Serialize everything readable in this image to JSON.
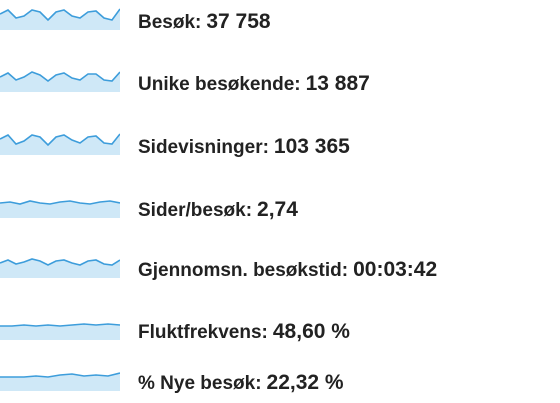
{
  "metrics": [
    {
      "label": "Besøk:",
      "value": "37 758"
    },
    {
      "label": "Unike besøkende:",
      "value": "13 887"
    },
    {
      "label": "Sidevisninger:",
      "value": "103 365"
    },
    {
      "label": "Sider/besøk:",
      "value": "2,74"
    },
    {
      "label": "Gjennomsn. besøkstid:",
      "value": "00:03:42"
    },
    {
      "label": "Fluktfrekvens:",
      "value": "48,60 %"
    },
    {
      "label": "% Nye besøk:",
      "value": "22,32 %"
    }
  ]
}
